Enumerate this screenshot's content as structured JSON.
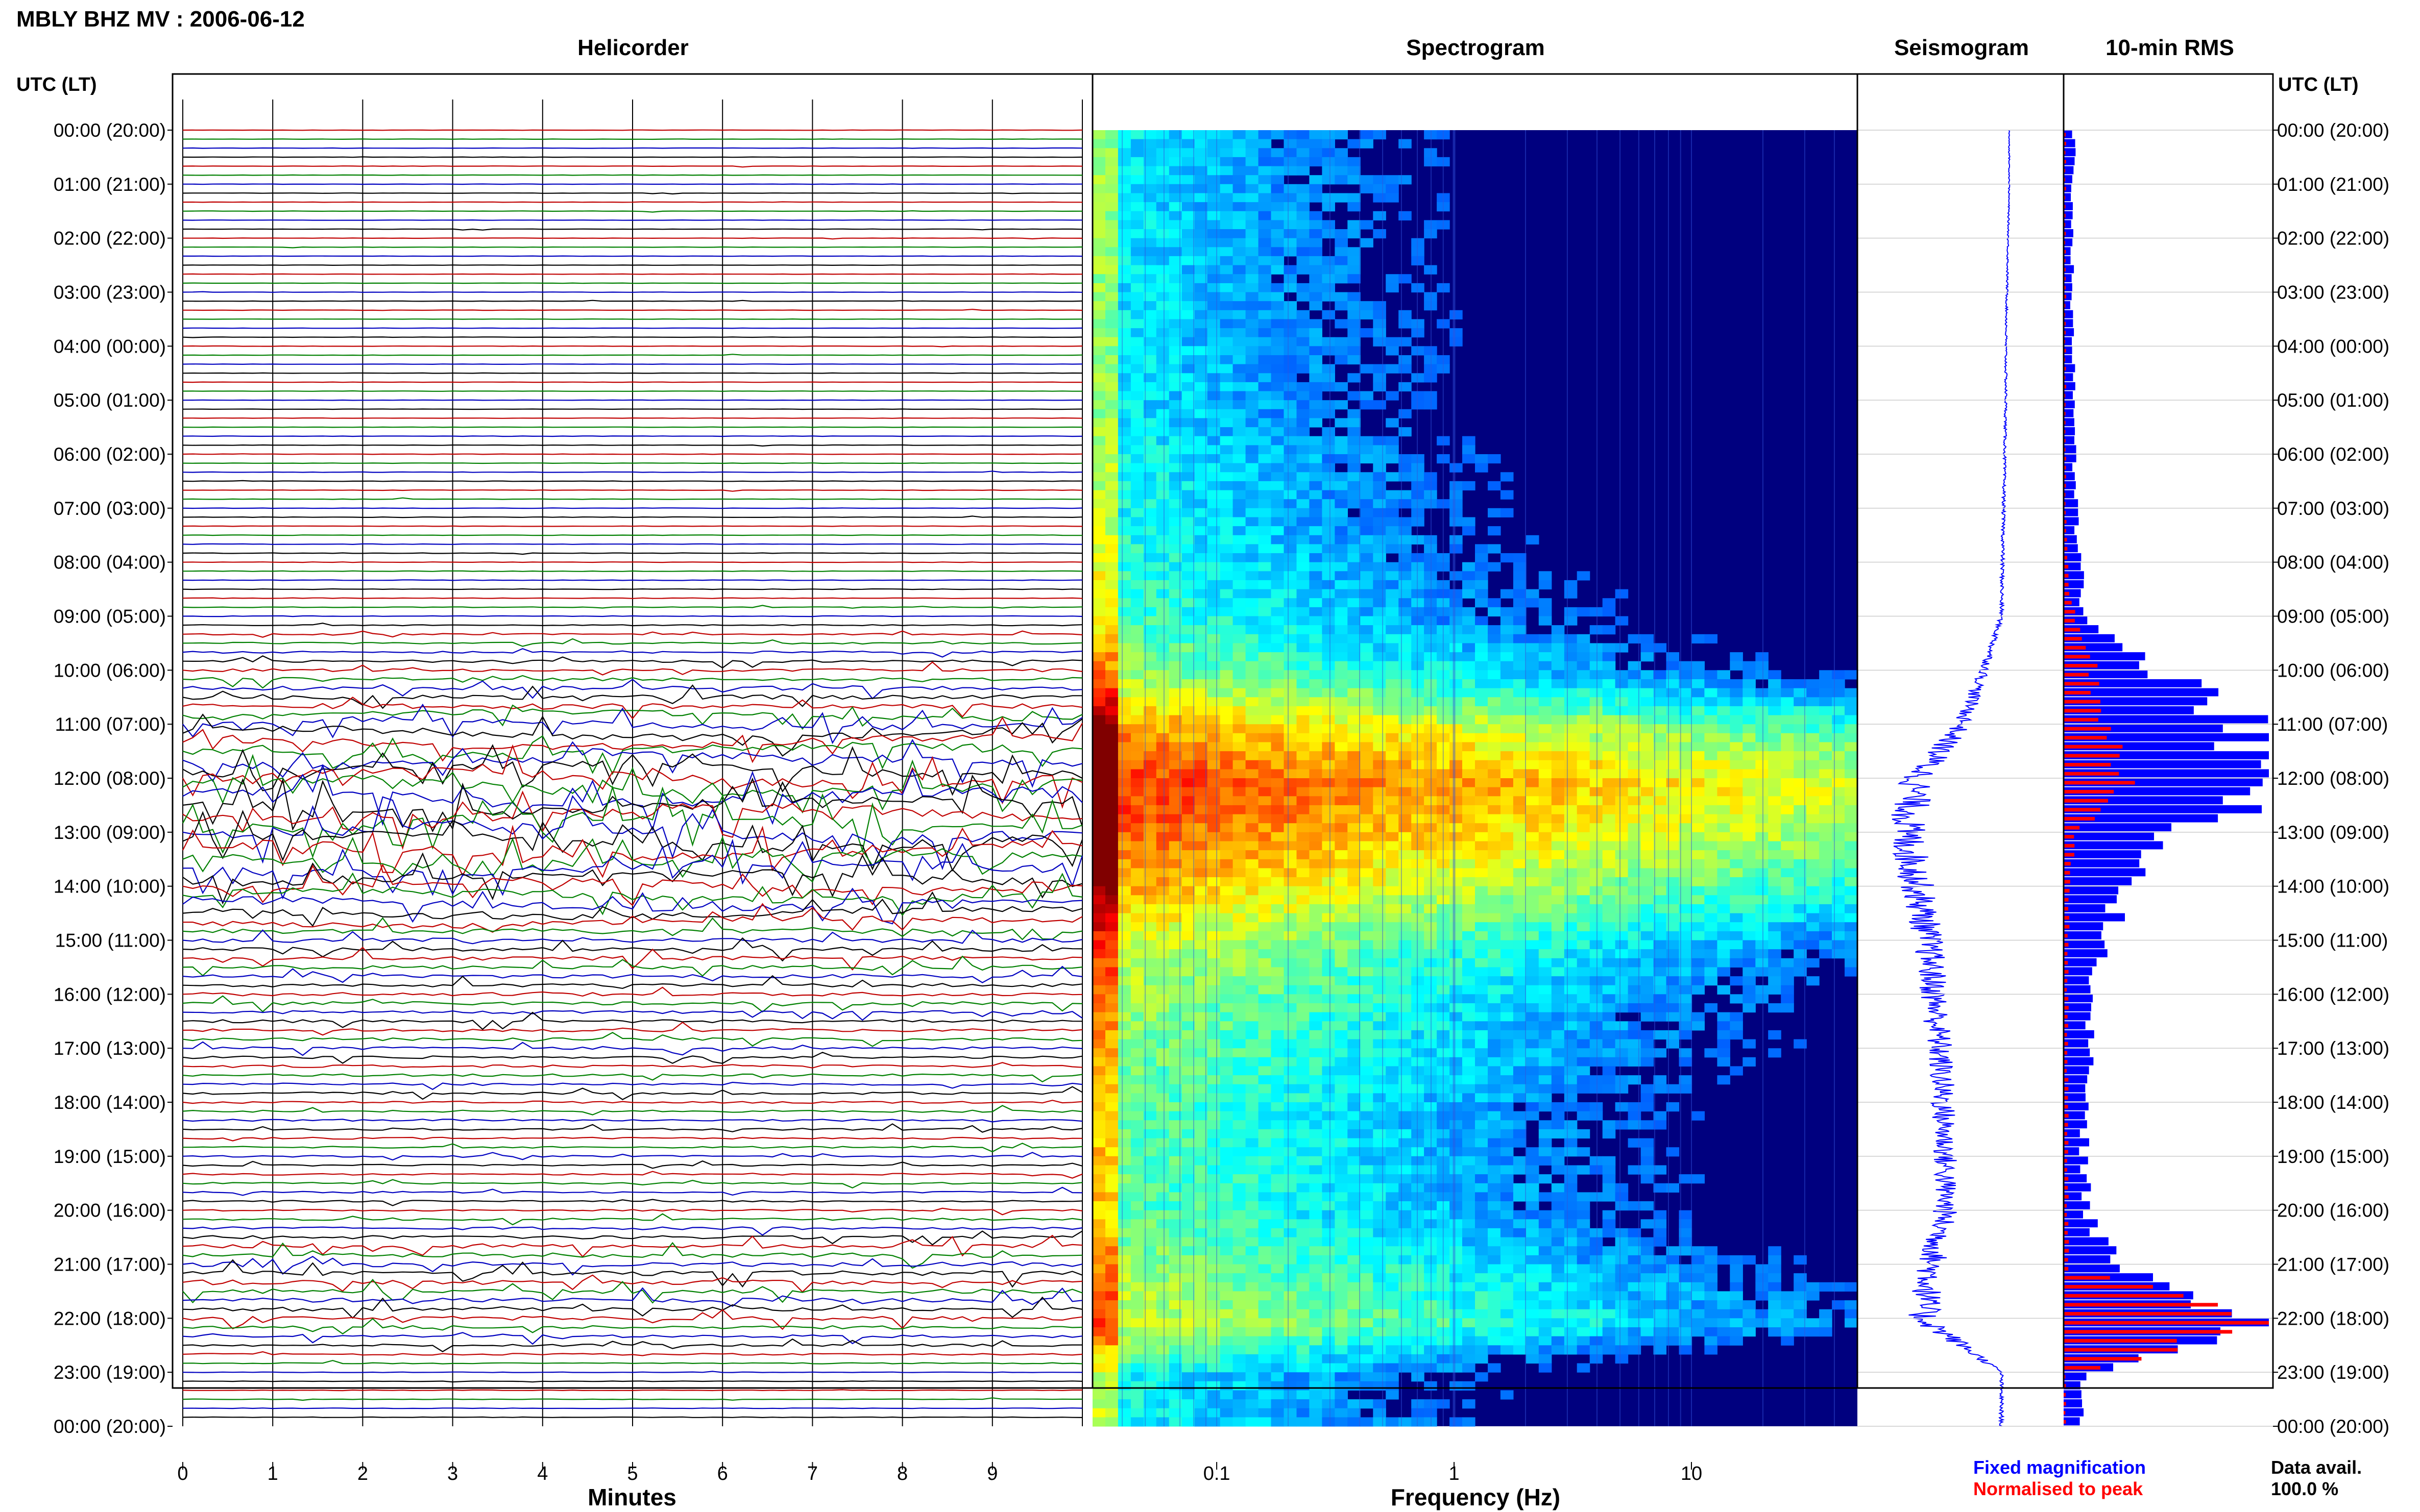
{
  "header": {
    "station_title": "MBLY BHZ MV : 2006-06-12"
  },
  "panels": {
    "helicorder_title": "Helicorder",
    "spectrogram_title": "Spectrogram",
    "seismogram_title": "Seismogram",
    "rms_title": "10-min RMS"
  },
  "time_axis": {
    "left_header": "UTC (LT)",
    "right_header": "UTC (LT)",
    "labels": [
      "00:00 (20:00)",
      "01:00 (21:00)",
      "02:00 (22:00)",
      "03:00 (23:00)",
      "04:00 (00:00)",
      "05:00 (01:00)",
      "06:00 (02:00)",
      "07:00 (03:00)",
      "08:00 (04:00)",
      "09:00 (05:00)",
      "10:00 (06:00)",
      "11:00 (07:00)",
      "12:00 (08:00)",
      "13:00 (09:00)",
      "14:00 (10:00)",
      "15:00 (11:00)",
      "16:00 (12:00)",
      "17:00 (13:00)",
      "18:00 (14:00)",
      "19:00 (15:00)",
      "20:00 (16:00)",
      "21:00 (17:00)",
      "22:00 (18:00)",
      "23:00 (19:00)",
      "00:00 (20:00)"
    ]
  },
  "helicorder_axis": {
    "xlabel": "Minutes",
    "ticks": [
      "0",
      "1",
      "2",
      "3",
      "4",
      "5",
      "6",
      "7",
      "8",
      "9"
    ]
  },
  "spectrogram_axis": {
    "xlabel": "Frequency (Hz)",
    "ticks": [
      "0.1",
      "1",
      "10"
    ]
  },
  "legend": {
    "fixed_label": "Fixed magnification",
    "normalised_label": "Normalised to peak",
    "availability_label": "Data avail.",
    "availability_value": "100.0 %"
  },
  "colors": {
    "trace_red": "#c00000",
    "trace_green": "#008000",
    "trace_blue": "#0000c0",
    "trace_black": "#000000",
    "rms_fixed": "#0000ff",
    "rms_normalised": "#ff0000",
    "spectrogram_background": "#00007f"
  },
  "chart_data": [
    {
      "type": "line",
      "title": "Helicorder",
      "xlabel": "Minutes",
      "xlim": [
        0,
        10
      ],
      "ylim": [
        0,
        24
      ],
      "x_ticks": [
        0,
        1,
        2,
        3,
        4,
        5,
        6,
        7,
        8,
        9
      ],
      "rows": 144,
      "row_minutes": 10,
      "trace_colors": [
        "red",
        "green",
        "blue",
        "black"
      ],
      "activity_by_hour": [
        0.03,
        0.03,
        0.03,
        0.03,
        0.03,
        0.03,
        0.04,
        0.04,
        0.05,
        0.06,
        0.25,
        0.55,
        0.85,
        0.95,
        0.7,
        0.4,
        0.3,
        0.25,
        0.2,
        0.15,
        0.15,
        0.45,
        0.35,
        0.05
      ]
    },
    {
      "type": "heatmap",
      "title": "Spectrogram",
      "xlabel": "Frequency (Hz)",
      "x_scale": "log",
      "xlim": [
        0.03,
        50
      ],
      "x_ticks": [
        0.1,
        1,
        10
      ],
      "ylim": [
        0,
        24
      ],
      "energy_by_hour": [
        0.1,
        0.1,
        0.1,
        0.1,
        0.1,
        0.1,
        0.15,
        0.15,
        0.2,
        0.25,
        0.4,
        0.75,
        0.95,
        0.85,
        0.7,
        0.5,
        0.4,
        0.35,
        0.3,
        0.3,
        0.3,
        0.4,
        0.5,
        0.15
      ]
    },
    {
      "type": "line",
      "title": "Seismogram",
      "ylim": [
        0,
        24
      ],
      "amplitude_by_hour": [
        0.03,
        0.03,
        0.04,
        0.05,
        0.06,
        0.06,
        0.07,
        0.08,
        0.09,
        0.1,
        0.25,
        0.45,
        0.85,
        0.95,
        0.85,
        0.75,
        0.7,
        0.65,
        0.62,
        0.6,
        0.6,
        0.72,
        0.8,
        0.1
      ]
    },
    {
      "type": "bar",
      "title": "10-min RMS",
      "ylim": [
        0,
        24
      ],
      "series": [
        {
          "name": "Fixed magnification",
          "hourly_values": [
            0.05,
            0.04,
            0.04,
            0.04,
            0.05,
            0.05,
            0.05,
            0.06,
            0.08,
            0.1,
            0.5,
            0.9,
            1.0,
            0.55,
            0.3,
            0.18,
            0.15,
            0.12,
            0.1,
            0.1,
            0.12,
            0.25,
            1.0,
            0.1
          ]
        },
        {
          "name": "Normalised to peak",
          "hourly_values": [
            0.01,
            0.01,
            0.01,
            0.01,
            0.01,
            0.01,
            0.01,
            0.01,
            0.02,
            0.05,
            0.15,
            0.2,
            0.3,
            0.05,
            0.03,
            0.02,
            0.02,
            0.02,
            0.02,
            0.02,
            0.02,
            0.03,
            1.0,
            0.01
          ]
        }
      ]
    }
  ]
}
